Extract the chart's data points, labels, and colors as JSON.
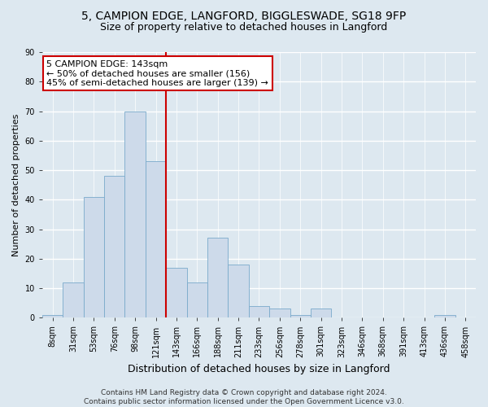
{
  "title1": "5, CAMPION EDGE, LANGFORD, BIGGLESWADE, SG18 9FP",
  "title2": "Size of property relative to detached houses in Langford",
  "xlabel": "Distribution of detached houses by size in Langford",
  "ylabel": "Number of detached properties",
  "categories": [
    "8sqm",
    "31sqm",
    "53sqm",
    "76sqm",
    "98sqm",
    "121sqm",
    "143sqm",
    "166sqm",
    "188sqm",
    "211sqm",
    "233sqm",
    "256sqm",
    "278sqm",
    "301sqm",
    "323sqm",
    "346sqm",
    "368sqm",
    "391sqm",
    "413sqm",
    "436sqm",
    "458sqm"
  ],
  "values": [
    1,
    12,
    41,
    48,
    70,
    53,
    17,
    12,
    27,
    18,
    4,
    3,
    1,
    3,
    0,
    0,
    0,
    0,
    0,
    1,
    0
  ],
  "bar_color": "#cddaea",
  "bar_edge_color": "#7aaacb",
  "vline_color": "#cc0000",
  "vline_index": 6,
  "annotation_box_text": "5 CAMPION EDGE: 143sqm\n← 50% of detached houses are smaller (156)\n45% of semi-detached houses are larger (139) →",
  "annotation_box_facecolor": "#ffffff",
  "annotation_box_edgecolor": "#cc0000",
  "ylim": [
    0,
    90
  ],
  "yticks": [
    0,
    10,
    20,
    30,
    40,
    50,
    60,
    70,
    80,
    90
  ],
  "footer_text": "Contains HM Land Registry data © Crown copyright and database right 2024.\nContains public sector information licensed under the Open Government Licence v3.0.",
  "bg_color": "#dde8f0",
  "plot_bg_color": "#dde8f0",
  "grid_color": "#ffffff",
  "title1_fontsize": 10,
  "title2_fontsize": 9,
  "xlabel_fontsize": 9,
  "ylabel_fontsize": 8,
  "tick_fontsize": 7,
  "annot_fontsize": 8,
  "footer_fontsize": 6.5
}
